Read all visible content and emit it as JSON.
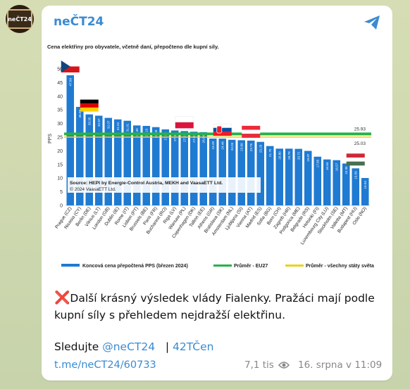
{
  "channel": {
    "name": "neČT24",
    "avatar_text": "neČT24"
  },
  "chart_data": {
    "type": "bar",
    "title": "Cena elektřiny pro obyvatele, včetně daní, přepočteno dle kupní síly.",
    "ylabel": "PPS",
    "ylim": [
      0,
      50
    ],
    "yticks": [
      0,
      5,
      10,
      15,
      20,
      25,
      30,
      35,
      40,
      45,
      50
    ],
    "categories": [
      "Prague (CZ)",
      "Nicosia (CY)",
      "Berlin (DE)",
      "Vilnius (LT)",
      "London (GB)",
      "Dublin (IE)",
      "Rome (IT)",
      "Lisbon (PT)",
      "Brussels (BE)",
      "Paris (FR)",
      "Bucharest (RO)",
      "Riga (LV)",
      "Warsaw (PL)",
      "Copenhagen (DK)",
      "Tallinn (EE)",
      "Athens (GR)",
      "Bratislava (SK)",
      "Amsterdam (NL)",
      "Ljubljana (SI)",
      "Vienna (AT)",
      "Madrid (ES)",
      "Sofia (BG)",
      "Bern (CH)",
      "Zagreb (HR)",
      "Podgorica (ME)",
      "Belgrade (RS)",
      "Helsinki (FI)",
      "Luxembourg City (LU)",
      "Stockholm (SE)",
      "Valletta (MT)",
      "Budapest (HU)",
      "Oslo (NO)"
    ],
    "series": [
      {
        "name": "Koncová cena přepočtená PPS (březen 2024)",
        "values": [
          47.69,
          36.09,
          33.35,
          32.87,
          32.07,
          31.52,
          31.01,
          29.3,
          29.13,
          28.68,
          27.85,
          27.45,
          27.23,
          27.0,
          26.84,
          24.49,
          24.46,
          24.03,
          23.88,
          23.75,
          23.28,
          21.75,
          20.8,
          20.79,
          20.72,
          19.97,
          17.85,
          16.84,
          16.57,
          15.35,
          13.58,
          10.04
        ]
      }
    ],
    "value_labels": [
      "47.69",
      "36.09",
      "33.35",
      "32.87",
      "32.07",
      "31.52",
      "31.01",
      "29.30",
      "29.13",
      "28.68",
      "27.85",
      "27.45",
      "27.23",
      "27.00",
      "26.84",
      "24.49",
      "24.46",
      "24.03",
      "23.88",
      "23.75",
      "23.28",
      "21.75",
      "20.80",
      "20.79",
      "20.72",
      "19.97",
      "17.85",
      "16.84",
      "16.57",
      "15.35",
      "13.58",
      "10.04"
    ],
    "reference_lines": [
      {
        "name": "Průměr - EU27",
        "value": 25.93,
        "label": "25.93",
        "color": "#23b34a"
      },
      {
        "name": "Průměr - všechny státy světa",
        "value": 25.03,
        "label": "25.03",
        "color": "#e8d21e"
      }
    ],
    "source": [
      "Source: HEPI by Energie-Control Austria, MEKH and VaasaETT Ltd.",
      "© 2024 VaasaETT Ltd."
    ],
    "bar_color": "#1f7ad1",
    "flags": [
      "CZ",
      "DE",
      "PL",
      "SK",
      "AT",
      "HU"
    ],
    "legend_position": "bottom"
  },
  "message": {
    "text": "Další krásný výsledek vlády Fialenky. Pražáci mají podle kupní síly s přehledem nejdražší elektřinu.",
    "cross_icon": "❌"
  },
  "follow": {
    "prefix": "Sledujte ",
    "handle": "@neCT24",
    "sep": "| ",
    "tag": "42TČen"
  },
  "footer": {
    "link": "t.me/neCT24/60733",
    "views": "7,1 tis",
    "date": "16. srpna v 11:09"
  },
  "colors": {
    "accent": "#3a8bd2",
    "bar": "#1f7ad1"
  }
}
